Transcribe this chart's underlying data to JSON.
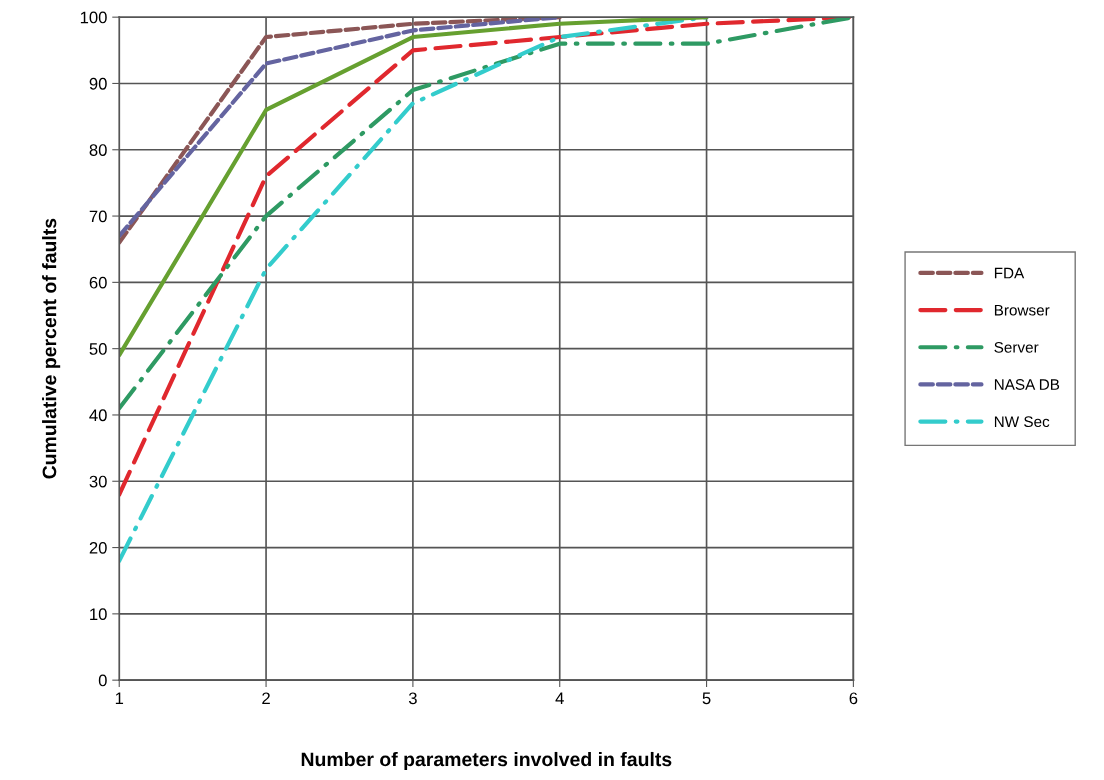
{
  "chart_data": {
    "type": "line",
    "xlabel": "Number of parameters involved in faults",
    "ylabel": "Cumulative percent of faults",
    "x": [
      1,
      2,
      3,
      4,
      5,
      6
    ],
    "series": [
      {
        "name": "FDA",
        "color": "#8b5656",
        "line_style": "dashed",
        "values": [
          66,
          97,
          99,
          100,
          null,
          null
        ]
      },
      {
        "name": "Browser",
        "color": "#e0282e",
        "line_style": "longdash",
        "values": [
          28,
          76,
          95,
          97,
          99,
          100
        ]
      },
      {
        "name": "Server",
        "color": "#2e9a63",
        "line_style": "dashdot",
        "values": [
          41,
          70,
          89,
          96,
          96,
          100
        ]
      },
      {
        "name": "NASA DB",
        "color": "#6464a0",
        "line_style": "dashed",
        "values": [
          67,
          93,
          98,
          100,
          null,
          null
        ]
      },
      {
        "name": "NW Sec",
        "color": "#33cccc",
        "line_style": "dashdot",
        "values": [
          18,
          62,
          87,
          97,
          100,
          null
        ]
      },
      {
        "color": "#66a030",
        "line_style": "solid",
        "values": [
          49,
          86,
          97,
          99,
          100,
          null
        ]
      }
    ],
    "xlim": [
      1,
      6
    ],
    "xticks": [
      1,
      2,
      3,
      4,
      5,
      6
    ],
    "ylim": [
      0,
      100
    ],
    "yticks": [
      0,
      10,
      20,
      30,
      40,
      50,
      60,
      70,
      80,
      90,
      100
    ],
    "grid": true,
    "legend": "right",
    "marker": "none"
  }
}
